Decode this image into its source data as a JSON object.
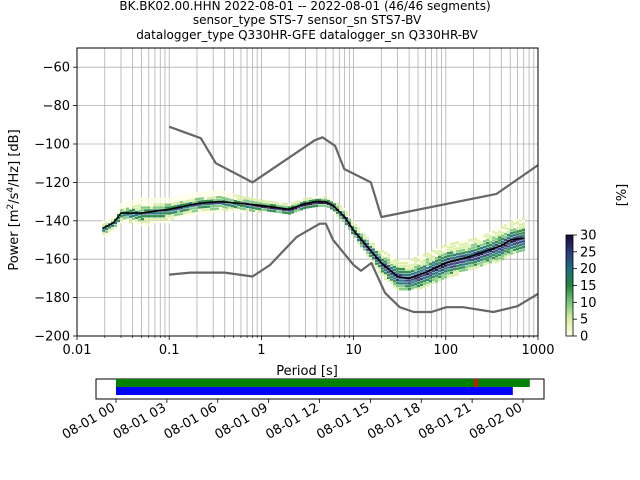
{
  "title": {
    "line1": "BK.BK02.00.HHN   2022-08-01 -- 2022-08-01  (46/46 segments)",
    "line2": "sensor_type STS-7 sensor_sn STS7-BV",
    "line3": "datalogger_type Q330HR-GFE datalogger_sn Q330HR-BV"
  },
  "chart_data": [
    {
      "type": "heatmap",
      "xlabel": "Period [s]",
      "ylabel": "Power [m²/s⁴/Hz] [dB]",
      "x_scale": "log",
      "xlim": [
        0.01,
        1000
      ],
      "ylim": [
        -200,
        -50
      ],
      "x_ticks": [
        0.01,
        0.1,
        1,
        10,
        100,
        1000
      ],
      "x_tick_labels": [
        "0.01",
        "0.1",
        "1",
        "10",
        "100",
        "1000"
      ],
      "y_ticks": [
        -200,
        -180,
        -160,
        -140,
        -120,
        -100,
        -80,
        -60
      ],
      "y_tick_labels": [
        "−200",
        "−180",
        "−160",
        "−140",
        "−120",
        "−100",
        "−80",
        "−60"
      ],
      "grid": true,
      "colorbar": {
        "label": "[%]",
        "range": [
          0,
          30
        ],
        "ticks": [
          0,
          5,
          10,
          15,
          20,
          25,
          30
        ],
        "tick_labels": [
          "0",
          "5",
          "10",
          "15",
          "20",
          "25",
          "30"
        ],
        "colors": [
          "#ffffe5",
          "#d9f0a3",
          "#78c679",
          "#238443",
          "#1d6f7a",
          "#2b3a7a",
          "#1a0a3a"
        ]
      },
      "series": [
        {
          "role": "noise-model-upper",
          "color": "#666666",
          "x": [
            0.1,
            0.22,
            0.32,
            0.8,
            3.8,
            4.6,
            6.3,
            7.9,
            15.4,
            20,
            354.8,
            1000
          ],
          "y": [
            -91,
            -97,
            -110,
            -120,
            -98,
            -96.5,
            -101,
            -113,
            -120,
            -138,
            -126,
            -111
          ]
        },
        {
          "role": "noise-model-lower",
          "color": "#666666",
          "x": [
            0.1,
            0.17,
            0.4,
            0.8,
            1.24,
            2.4,
            4.3,
            5,
            6,
            10,
            12,
            15.6,
            21.9,
            31.6,
            45,
            70,
            101,
            154,
            328,
            600,
            1000
          ],
          "y": [
            -168,
            -167,
            -167,
            -169,
            -163,
            -148.5,
            -141.5,
            -141.5,
            -150,
            -163,
            -166,
            -162,
            -177.5,
            -185,
            -187.5,
            -187.5,
            -185,
            -185,
            -187.5,
            -184.5,
            -178
          ]
        },
        {
          "role": "mean",
          "color": "#000000",
          "x": [
            0.019,
            0.025,
            0.03,
            0.05,
            0.1,
            0.2,
            0.35,
            0.6,
            1,
            2,
            3,
            4,
            5,
            6,
            8,
            10,
            15,
            20,
            30,
            40,
            60,
            100,
            200,
            300,
            400,
            500,
            700
          ],
          "y": [
            -144,
            -141,
            -136,
            -136,
            -134,
            -131,
            -130,
            -131,
            -132,
            -134,
            -131,
            -130,
            -130,
            -132,
            -138,
            -145,
            -155,
            -162,
            -169,
            -170,
            -167,
            -162,
            -158,
            -155,
            -153,
            -150,
            -149
          ]
        }
      ],
      "heatmap_band": {
        "x": [
          0.019,
          0.025,
          0.03,
          0.05,
          0.1,
          0.2,
          0.35,
          0.6,
          1,
          2,
          3,
          4,
          5,
          6,
          8,
          10,
          15,
          20,
          30,
          40,
          60,
          100,
          200,
          300,
          400,
          500,
          700
        ],
        "y_low": [
          -148,
          -145,
          -140,
          -142,
          -140,
          -136,
          -135,
          -135,
          -135,
          -136,
          -134,
          -133,
          -133,
          -135,
          -141,
          -148,
          -160,
          -168,
          -176,
          -176,
          -174,
          -170,
          -164,
          -162,
          -160,
          -157,
          -156
        ],
        "y_high": [
          -140,
          -137,
          -131,
          -128,
          -128,
          -125,
          -124,
          -127,
          -129,
          -131,
          -128,
          -127,
          -127,
          -129,
          -134,
          -141,
          -150,
          -155,
          -160,
          -160,
          -157,
          -152,
          -149,
          -146,
          -143,
          -140,
          -138
        ]
      }
    },
    {
      "type": "timeline",
      "x_tick_labels": [
        "08-01 00",
        "08-01 03",
        "08-01 06",
        "08-01 09",
        "08-01 12",
        "08-01 15",
        "08-01 18",
        "08-01 21",
        "08-02 00"
      ],
      "bars": [
        {
          "role": "data-availability",
          "color": "#008000",
          "start_hour": 0,
          "end_hour": 24.4
        },
        {
          "role": "psd-segments",
          "color": "#0000ff",
          "start_hour": 0,
          "end_hour": 23.4
        }
      ],
      "gap_marks": [
        {
          "color": "#ff0000",
          "hour": 21.2
        }
      ]
    }
  ]
}
